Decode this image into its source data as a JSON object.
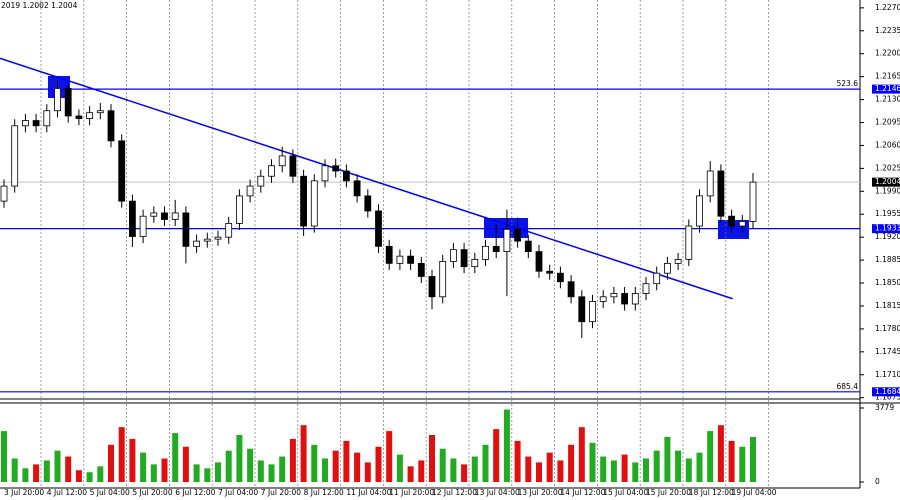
{
  "chart_data": [
    {
      "type": "candlestick",
      "title": "2019 1.2002 1.2004",
      "x": [
        "3 Jul 20:00",
        null,
        null,
        null,
        "4 Jul 12:00",
        null,
        null,
        null,
        "5 Jul 04:00",
        null,
        null,
        null,
        "5 Jul 20:00",
        null,
        null,
        null,
        "6 Jul 12:00",
        null,
        null,
        null,
        "7 Jul 04:00",
        null,
        null,
        null,
        "7 Jul 20:00",
        null,
        null,
        null,
        "8 Jul 12:00",
        null,
        null,
        null,
        "11 Jul 04:00",
        null,
        null,
        null,
        "11 Jul 20:00",
        null,
        null,
        null,
        "12 Jul 12:00",
        null,
        null,
        null,
        "13 Jul 04:00",
        null,
        null,
        null,
        "13 Jul 20:00",
        null,
        null,
        null,
        "14 Jul 12:00",
        null,
        null,
        null,
        "15 Jul 04:00",
        null,
        null,
        null,
        "15 Jul 20:00",
        null,
        null,
        null,
        "18 Jul 12:00",
        null,
        null,
        null,
        "19 Jul 04:00",
        null,
        null
      ],
      "open": [
        1.1975,
        1.1998,
        1.209,
        1.2098,
        1.209,
        1.2113,
        1.2147,
        1.2105,
        1.2101,
        1.211,
        1.2113,
        1.2067,
        1.1975,
        1.1921,
        1.1952,
        1.1957,
        1.1947,
        1.1957,
        1.1906,
        1.1914,
        1.1917,
        1.192,
        1.1941,
        1.1983,
        1.1998,
        1.2013,
        1.2029,
        1.2044,
        1.2013,
        1.1937,
        1.2006,
        1.2029,
        1.2021,
        1.2006,
        1.1983,
        1.196,
        1.1906,
        1.188,
        1.1891,
        1.188,
        1.186,
        1.1829,
        1.1883,
        1.1901,
        1.1875,
        1.1886,
        1.1906,
        1.1898,
        1.1932,
        1.1914,
        1.1898,
        1.1868,
        1.1865,
        1.1852,
        1.1829,
        1.1791,
        1.1822,
        1.1829,
        1.1834,
        1.1818,
        1.1834,
        1.1849,
        1.1865,
        1.188,
        1.1886,
        1.1937,
        1.1983,
        1.2021,
        1.1952,
        1.1937,
        1.1944
      ],
      "high": [
        1.2008,
        1.21,
        1.2108,
        1.2108,
        1.2123,
        1.216,
        1.2155,
        1.2115,
        1.212,
        1.2125,
        1.2123,
        1.2077,
        1.1985,
        1.1962,
        1.1967,
        1.1967,
        1.1977,
        1.1967,
        1.1924,
        1.1927,
        1.193,
        1.1951,
        1.1993,
        1.2008,
        1.2023,
        1.2039,
        1.2058,
        1.2054,
        1.2023,
        1.2016,
        1.2039,
        1.204,
        1.2031,
        1.2016,
        1.1993,
        1.197,
        1.1916,
        1.1901,
        1.1901,
        1.189,
        1.187,
        1.1893,
        1.1911,
        1.1911,
        1.1896,
        1.1916,
        1.194,
        1.1962,
        1.195,
        1.1924,
        1.1908,
        1.1878,
        1.1875,
        1.1862,
        1.1839,
        1.1832,
        1.1839,
        1.1844,
        1.1844,
        1.1844,
        1.1859,
        1.1875,
        1.189,
        1.1896,
        1.1947,
        1.1993,
        1.2036,
        1.2031,
        1.1962,
        1.1954,
        1.2018
      ],
      "low": [
        1.1965,
        1.1988,
        1.208,
        1.208,
        1.208,
        1.2103,
        1.2095,
        1.2091,
        1.2091,
        1.21,
        1.2057,
        1.1965,
        1.1905,
        1.1911,
        1.1942,
        1.1937,
        1.1937,
        1.188,
        1.1896,
        1.1904,
        1.1907,
        1.191,
        1.1931,
        1.1973,
        1.1988,
        1.2003,
        1.2019,
        1.2003,
        1.1922,
        1.1927,
        1.1996,
        1.2011,
        1.1996,
        1.1973,
        1.195,
        1.1896,
        1.187,
        1.187,
        1.187,
        1.185,
        1.181,
        1.1819,
        1.1873,
        1.1865,
        1.1865,
        1.1876,
        1.1888,
        1.183,
        1.1904,
        1.1888,
        1.1858,
        1.1855,
        1.1842,
        1.1819,
        1.1766,
        1.1781,
        1.1812,
        1.1819,
        1.1808,
        1.1808,
        1.1824,
        1.1839,
        1.1855,
        1.187,
        1.1876,
        1.1927,
        1.1973,
        1.1942,
        1.1927,
        1.1927,
        1.1934
      ],
      "close": [
        1.1998,
        1.209,
        1.2098,
        1.209,
        1.2113,
        1.2147,
        1.2105,
        1.2101,
        1.211,
        1.2113,
        1.2067,
        1.1975,
        1.1921,
        1.1952,
        1.1957,
        1.1947,
        1.1957,
        1.1906,
        1.1914,
        1.1917,
        1.192,
        1.1941,
        1.1983,
        1.1998,
        1.2013,
        1.2029,
        1.2044,
        1.2013,
        1.1937,
        1.2006,
        1.2029,
        1.2021,
        1.2006,
        1.1983,
        1.196,
        1.1906,
        1.188,
        1.1891,
        1.188,
        1.186,
        1.1829,
        1.1883,
        1.1901,
        1.1875,
        1.1886,
        1.1906,
        1.1898,
        1.1932,
        1.1914,
        1.1898,
        1.1868,
        1.1865,
        1.1852,
        1.1829,
        1.1791,
        1.1822,
        1.1829,
        1.1834,
        1.1818,
        1.1834,
        1.1849,
        1.1865,
        1.188,
        1.1886,
        1.1937,
        1.1983,
        1.2021,
        1.1952,
        1.1937,
        1.1944,
        1.2004
      ],
      "up_color": "#ffffff",
      "down_color": "#000000",
      "outline_color": "#000000",
      "ylim": [
        1.1673,
        1.2282
      ],
      "yticks": [
        {
          "value": 1.227,
          "label": "1.2270"
        },
        1.2235,
        {
          "value": 1.22,
          "label": "1.2200"
        },
        1.2165,
        {
          "value": 1.213,
          "label": "1.2130"
        },
        1.2095,
        {
          "value": 1.206,
          "label": "1.2060"
        },
        1.2025,
        {
          "value": 1.199,
          "label": "1.1990"
        },
        1.1955,
        {
          "value": 1.192,
          "label": "1.1920"
        },
        1.1885,
        {
          "value": 1.185,
          "label": "1.1850"
        },
        1.1815,
        {
          "value": 1.178,
          "label": "1.1780"
        },
        1.1745,
        {
          "value": 1.171,
          "label": "1.1710"
        },
        1.1675
      ],
      "levels": [
        {
          "value": 1.2146,
          "note": "523.6"
        },
        {
          "value": 1.1933
        },
        {
          "value": 1.1684,
          "note": "685.4"
        }
      ],
      "level_color": "#0000ff",
      "price_line": 1.2004,
      "trend_line": [
        1.2193,
        1.1826
      ],
      "trend_color": "#0000ff"
    },
    {
      "type": "volume",
      "values": [
        2600,
        1200,
        700,
        900,
        1100,
        1600,
        1300,
        600,
        500,
        800,
        1900,
        2800,
        2200,
        1500,
        900,
        1200,
        2500,
        1800,
        900,
        700,
        1000,
        1600,
        2400,
        1700,
        1100,
        900,
        1300,
        2200,
        2900,
        1900,
        1200,
        1600,
        2100,
        1500,
        1000,
        1800,
        2600,
        1400,
        800,
        1100,
        2400,
        1700,
        1200,
        900,
        1300,
        1900,
        2700,
        3700,
        2100,
        1300,
        1000,
        1500,
        1100,
        1900,
        2800,
        2000,
        1300,
        1100,
        1400,
        1000,
        1200,
        1600,
        2300,
        1600,
        1200,
        1500,
        2600,
        2900,
        2100,
        1800,
        2300
      ],
      "up_color": "#22aa22",
      "down_color": "#e01010",
      "ylim": [
        0,
        3779
      ],
      "yticks": [
        0,
        3779
      ]
    }
  ]
}
